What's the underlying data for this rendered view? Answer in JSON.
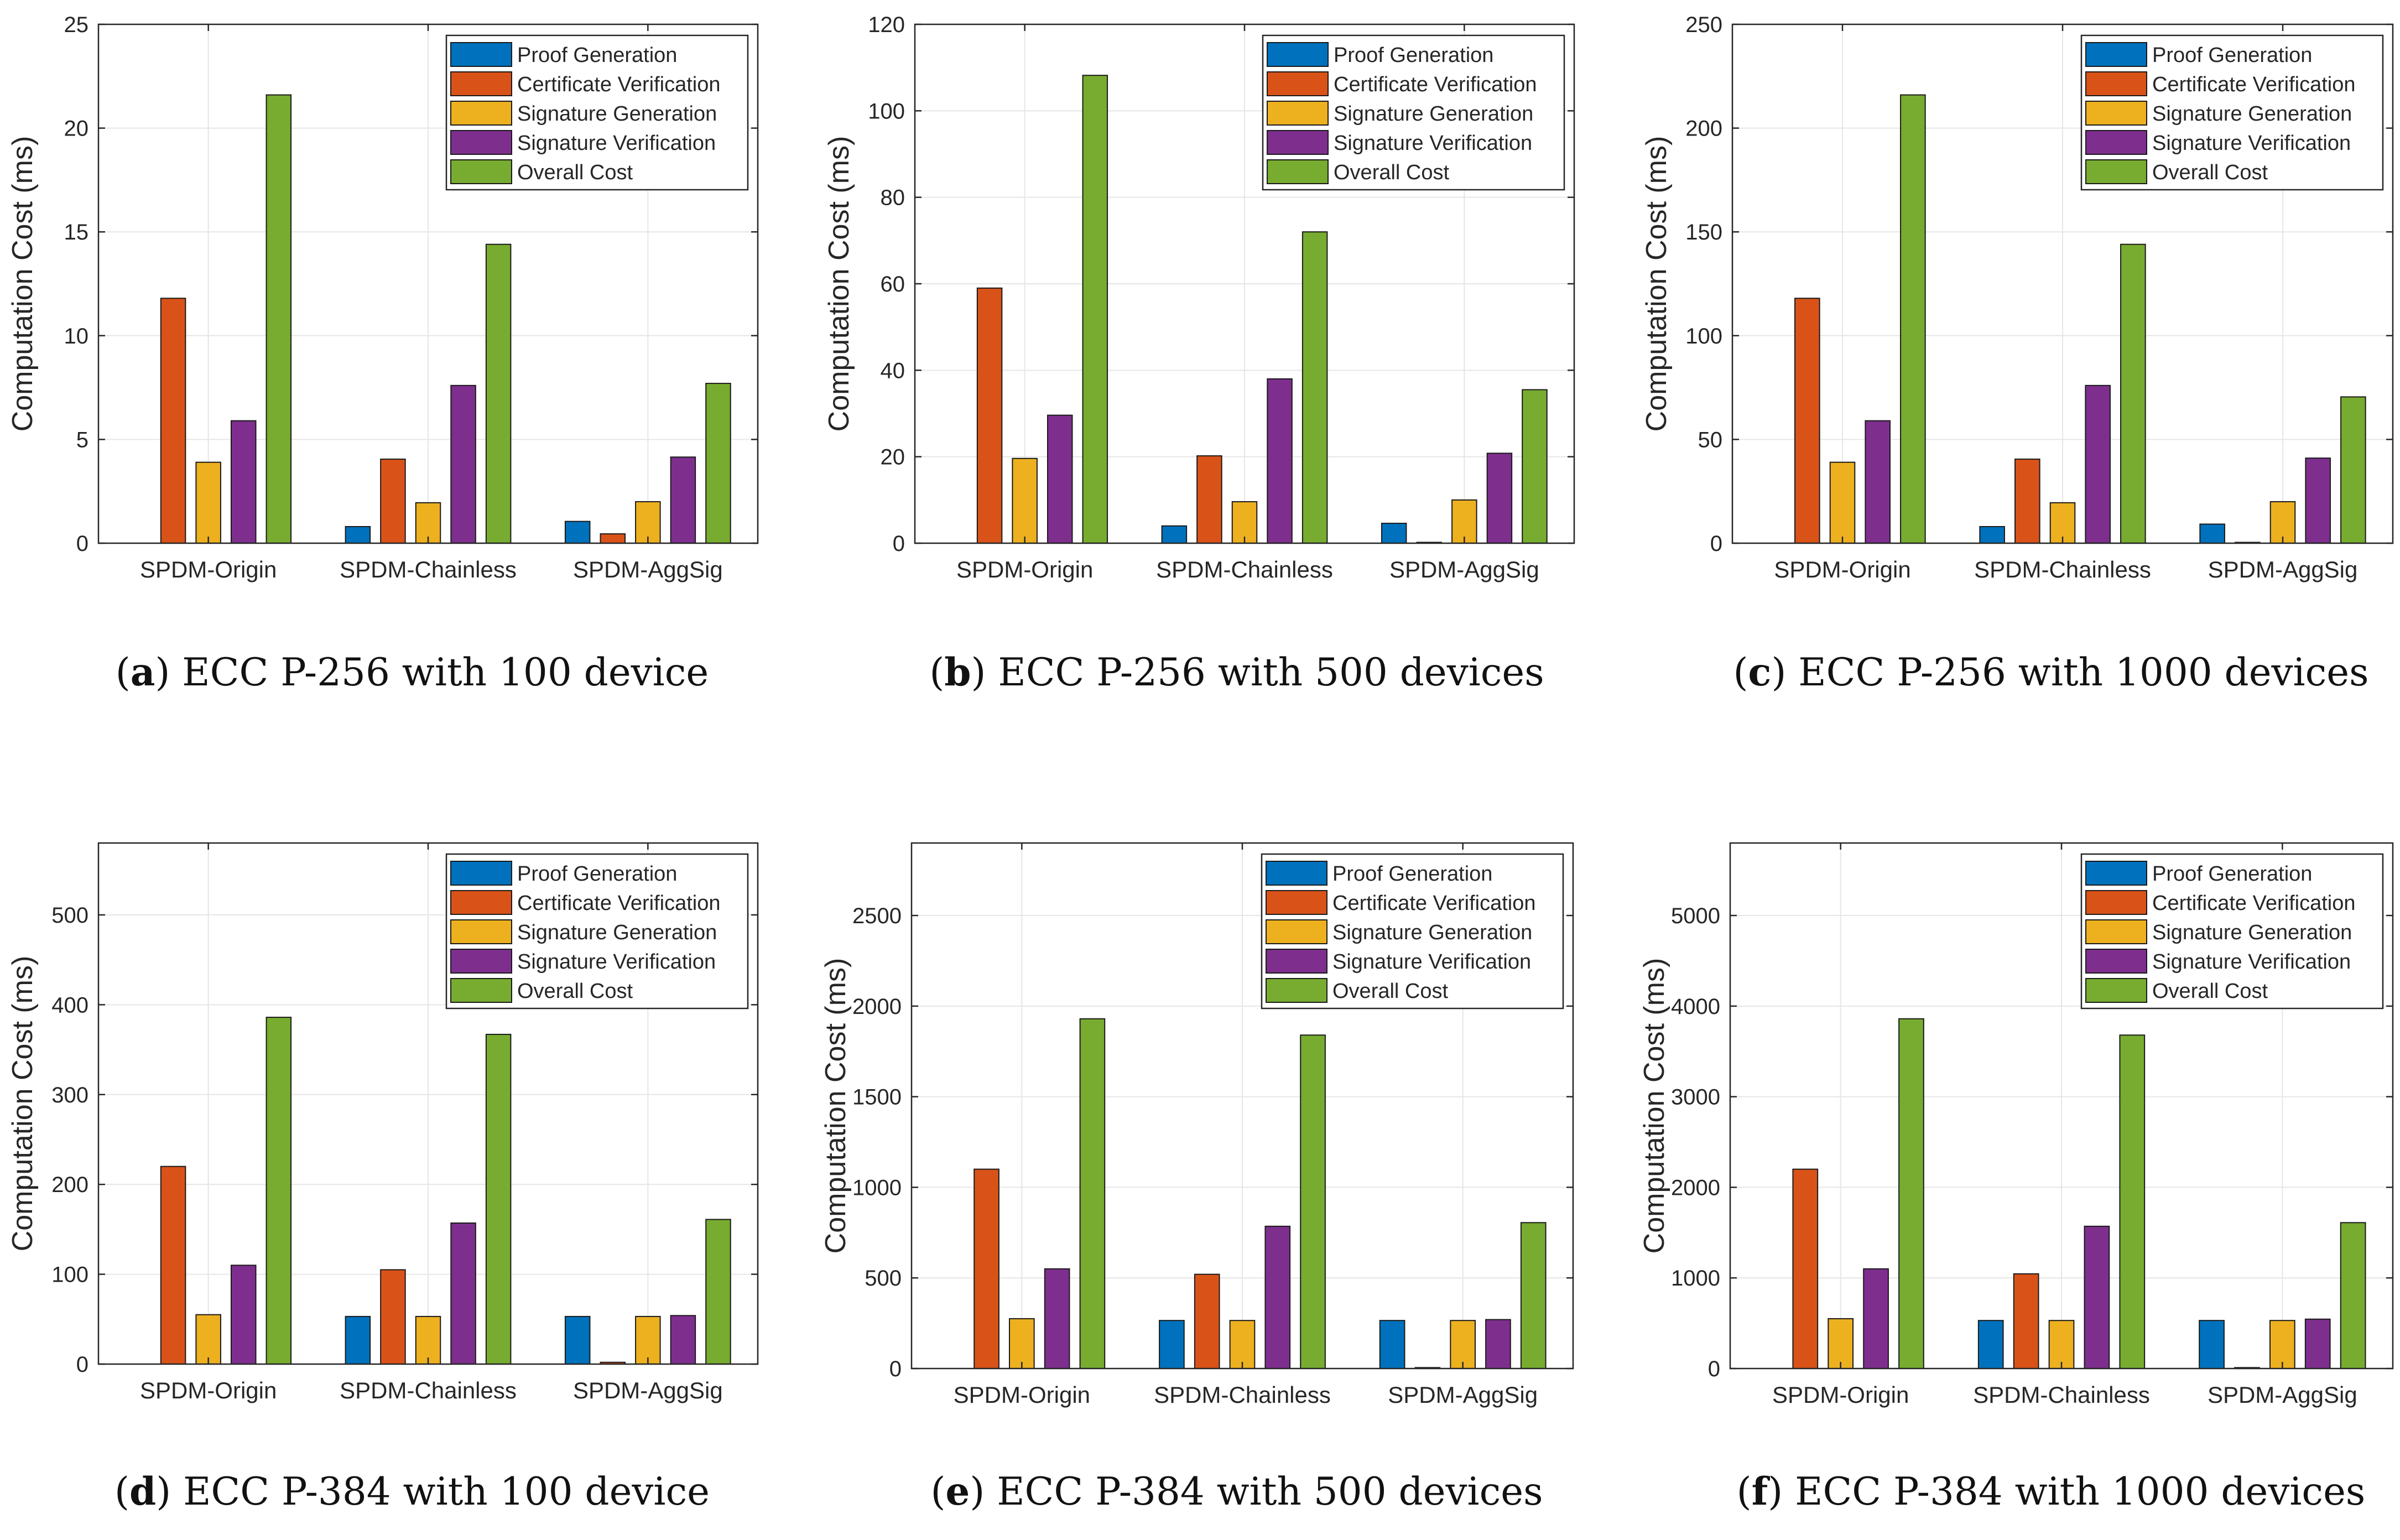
{
  "legend_labels": [
    "Proof Generation",
    "Certificate Verification",
    "Signature Generation",
    "Signature Verification",
    "Overall Cost"
  ],
  "series_colors": [
    "#0072BD",
    "#D95319",
    "#EDB120",
    "#7E2F8E",
    "#77AC30"
  ],
  "chart_data": [
    {
      "type": "bar",
      "panel": "a",
      "caption": "ECC P-256 with 100 device",
      "ylabel": "Computation Cost (ms)",
      "xlabel": "",
      "categories": [
        "SPDM-Origin",
        "SPDM-Chainless",
        "SPDM-AggSig"
      ],
      "ylim": [
        0,
        25
      ],
      "yticks": [
        0,
        5,
        10,
        15,
        20,
        25
      ],
      "grid": true,
      "legend": "top-right",
      "series": [
        {
          "name": "Proof Generation",
          "values": [
            0,
            0.8,
            1.05
          ]
        },
        {
          "name": "Certificate Verification",
          "values": [
            11.8,
            4.05,
            0.45
          ]
        },
        {
          "name": "Signature Generation",
          "values": [
            3.9,
            1.95,
            2.0
          ]
        },
        {
          "name": "Signature Verification",
          "values": [
            5.9,
            7.6,
            4.15
          ]
        },
        {
          "name": "Overall Cost",
          "values": [
            21.6,
            14.4,
            7.7
          ]
        }
      ]
    },
    {
      "type": "bar",
      "panel": "b",
      "caption": "ECC P-256 with 500 devices",
      "ylabel": "Computation Cost (ms)",
      "xlabel": "",
      "categories": [
        "SPDM-Origin",
        "SPDM-Chainless",
        "SPDM-AggSig"
      ],
      "ylim": [
        0,
        120
      ],
      "yticks": [
        0,
        20,
        40,
        60,
        80,
        100,
        120
      ],
      "grid": true,
      "legend": "top-right",
      "series": [
        {
          "name": "Proof Generation",
          "values": [
            0,
            4.0,
            4.6
          ]
        },
        {
          "name": "Certificate Verification",
          "values": [
            59.0,
            20.2,
            0.2
          ]
        },
        {
          "name": "Signature Generation",
          "values": [
            19.6,
            9.6,
            10.0
          ]
        },
        {
          "name": "Signature Verification",
          "values": [
            29.6,
            38.0,
            20.8
          ]
        },
        {
          "name": "Overall Cost",
          "values": [
            108.2,
            72.0,
            35.5
          ]
        }
      ]
    },
    {
      "type": "bar",
      "panel": "c",
      "caption": "ECC P-256 with 1000 devices",
      "ylabel": "Computation Cost (ms)",
      "xlabel": "",
      "categories": [
        "SPDM-Origin",
        "SPDM-Chainless",
        "SPDM-AggSig"
      ],
      "ylim": [
        0,
        250
      ],
      "yticks": [
        0,
        50,
        100,
        150,
        200,
        250
      ],
      "grid": true,
      "legend": "top-right",
      "series": [
        {
          "name": "Proof Generation",
          "values": [
            0,
            8.0,
            9.2
          ]
        },
        {
          "name": "Certificate Verification",
          "values": [
            118.0,
            40.5,
            0.4
          ]
        },
        {
          "name": "Signature Generation",
          "values": [
            39.0,
            19.5,
            20.0
          ]
        },
        {
          "name": "Signature Verification",
          "values": [
            59.0,
            76.0,
            41.0
          ]
        },
        {
          "name": "Overall Cost",
          "values": [
            216.0,
            144.0,
            70.5
          ]
        }
      ]
    },
    {
      "type": "bar",
      "panel": "d",
      "caption": "ECC P-384 with 100 device",
      "ylabel": "Computation Cost (ms)",
      "xlabel": "",
      "categories": [
        "SPDM-Origin",
        "SPDM-Chainless",
        "SPDM-AggSig"
      ],
      "ylim": [
        0,
        580
      ],
      "yticks": [
        0,
        100,
        200,
        300,
        400,
        500
      ],
      "grid": true,
      "legend": "top-right",
      "series": [
        {
          "name": "Proof Generation",
          "values": [
            0,
            53,
            53
          ]
        },
        {
          "name": "Certificate Verification",
          "values": [
            220,
            105,
            2
          ]
        },
        {
          "name": "Signature Generation",
          "values": [
            55,
            53,
            53
          ]
        },
        {
          "name": "Signature Verification",
          "values": [
            110,
            157,
            54
          ]
        },
        {
          "name": "Overall Cost",
          "values": [
            386,
            367,
            161
          ]
        }
      ]
    },
    {
      "type": "bar",
      "panel": "e",
      "caption": "ECC P-384 with 500 devices",
      "ylabel": "Computation Cost (ms)",
      "xlabel": "",
      "categories": [
        "SPDM-Origin",
        "SPDM-Chainless",
        "SPDM-AggSig"
      ],
      "ylim": [
        0,
        2900
      ],
      "yticks": [
        0,
        500,
        1000,
        1500,
        2000,
        2500
      ],
      "grid": true,
      "legend": "top-right",
      "series": [
        {
          "name": "Proof Generation",
          "values": [
            0,
            265,
            265
          ]
        },
        {
          "name": "Certificate Verification",
          "values": [
            1100,
            520,
            5
          ]
        },
        {
          "name": "Signature Generation",
          "values": [
            275,
            265,
            265
          ]
        },
        {
          "name": "Signature Verification",
          "values": [
            550,
            785,
            270
          ]
        },
        {
          "name": "Overall Cost",
          "values": [
            1930,
            1840,
            805
          ]
        }
      ]
    },
    {
      "type": "bar",
      "panel": "f",
      "caption": "ECC P-384 with 1000 devices",
      "ylabel": "Computation Cost (ms)",
      "xlabel": "",
      "categories": [
        "SPDM-Origin",
        "SPDM-Chainless",
        "SPDM-AggSig"
      ],
      "ylim": [
        0,
        5800
      ],
      "yticks": [
        0,
        1000,
        2000,
        3000,
        4000,
        5000
      ],
      "grid": true,
      "legend": "top-right",
      "series": [
        {
          "name": "Proof Generation",
          "values": [
            0,
            530,
            530
          ]
        },
        {
          "name": "Certificate Verification",
          "values": [
            2200,
            1045,
            10
          ]
        },
        {
          "name": "Signature Generation",
          "values": [
            550,
            530,
            530
          ]
        },
        {
          "name": "Signature Verification",
          "values": [
            1100,
            1570,
            545
          ]
        },
        {
          "name": "Overall Cost",
          "values": [
            3860,
            3680,
            1610
          ]
        }
      ]
    }
  ]
}
